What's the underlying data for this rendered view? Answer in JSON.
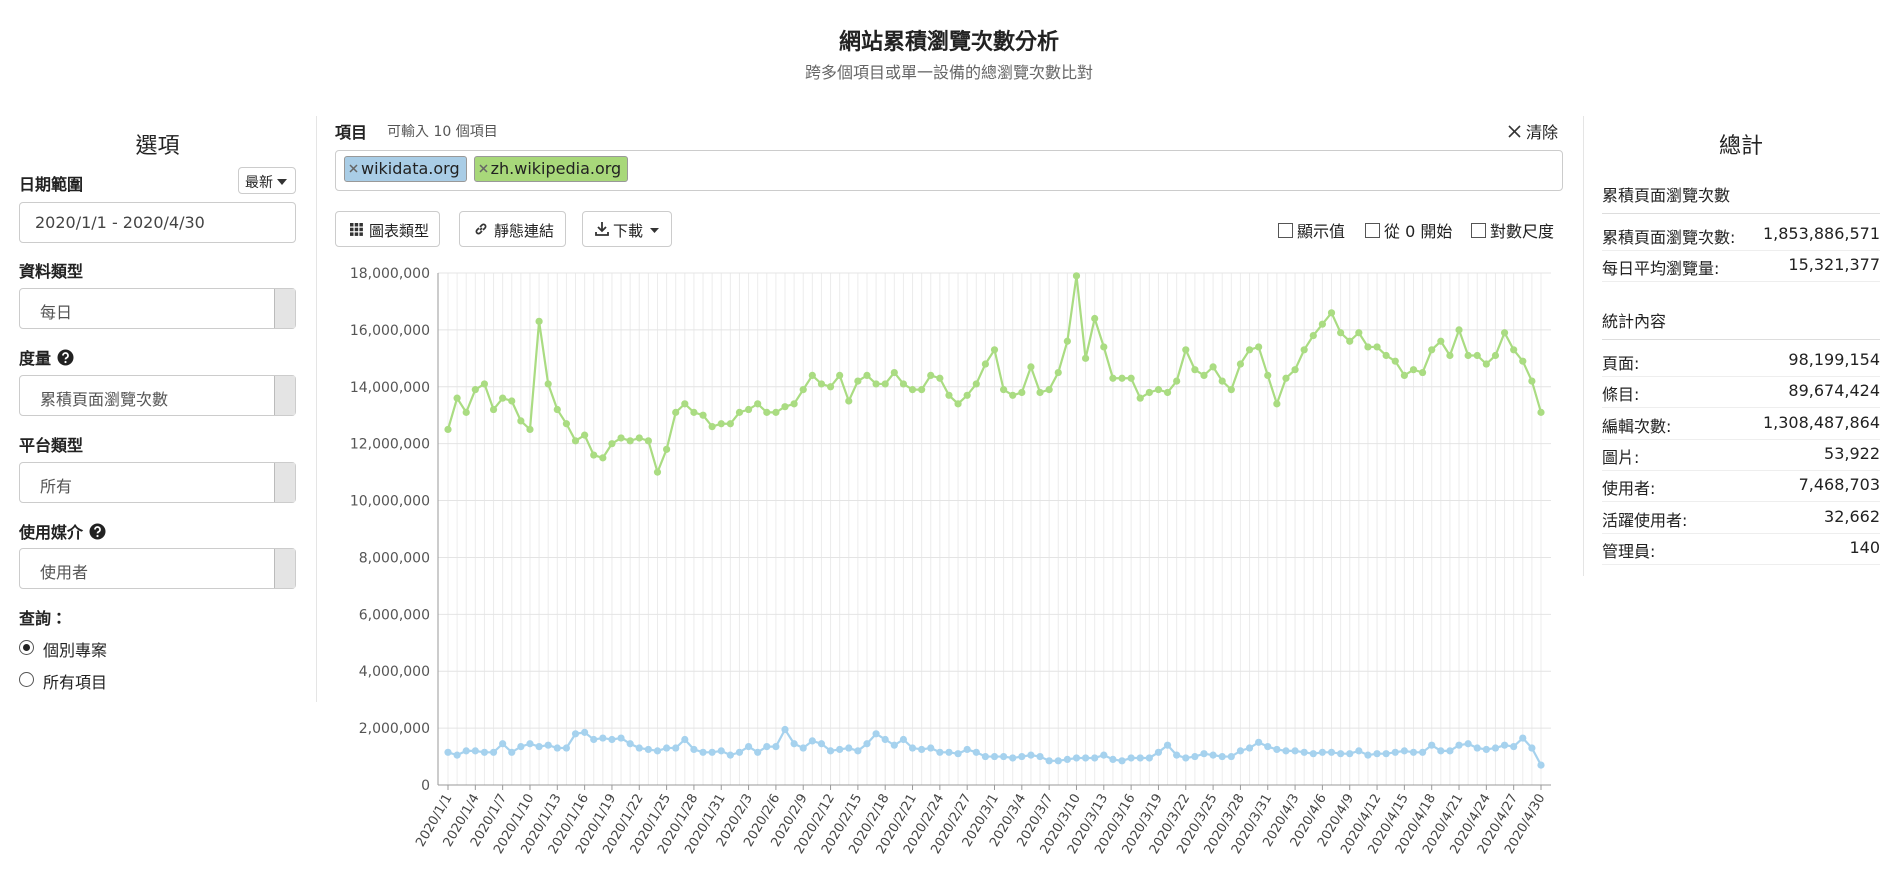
{
  "header": {
    "title": "網站累積瀏覽次數分析",
    "subtitle": "跨多個項目或單一設備的總瀏覽次數比對"
  },
  "options": {
    "title": "選項",
    "date_range_label": "日期範圍",
    "latest_button": "最新",
    "date_range": "2020/1/1 - 2020/4/30",
    "data_type_label": "資料類型",
    "data_type": "每日",
    "metric_label": "度量",
    "metric": "累積頁面瀏覽次數",
    "platform_label": "平台類型",
    "platform": "所有",
    "agent_label": "使用媒介",
    "agent": "使用者",
    "query_label": "查詢：",
    "query_options": [
      "個別專案",
      "所有項目"
    ]
  },
  "toolbar": {
    "items_label": "項目",
    "items_hint": "可輸入 10 個項目",
    "clear": "清除",
    "buttons": [
      "圖表類型",
      "靜態連結",
      "下載"
    ],
    "checkboxes": [
      "顯示值",
      "從 0 開始",
      "對數尺度"
    ]
  },
  "chart_data": {
    "type": "line",
    "categories": [
      "2020/1/1",
      null,
      null,
      "2020/1/4",
      null,
      null,
      "2020/1/7",
      null,
      null,
      "2020/1/10",
      null,
      null,
      "2020/1/13",
      null,
      null,
      "2020/1/16",
      null,
      null,
      "2020/1/19",
      null,
      null,
      "2020/1/22",
      null,
      null,
      "2020/1/25",
      null,
      null,
      "2020/1/28",
      null,
      null,
      "2020/1/31",
      null,
      null,
      "2020/2/3",
      null,
      null,
      "2020/2/6",
      null,
      null,
      "2020/2/9",
      null,
      null,
      "2020/2/12",
      null,
      null,
      "2020/2/15",
      null,
      null,
      "2020/2/18",
      null,
      null,
      "2020/2/21",
      null,
      null,
      "2020/2/24",
      null,
      null,
      "2020/2/27",
      null,
      null,
      "2020/3/1",
      null,
      null,
      "2020/3/4",
      null,
      null,
      "2020/3/7",
      null,
      null,
      "2020/3/10",
      null,
      null,
      "2020/3/13",
      null,
      null,
      "2020/3/16",
      null,
      null,
      "2020/3/19",
      null,
      null,
      "2020/3/22",
      null,
      null,
      "2020/3/25",
      null,
      null,
      "2020/3/28",
      null,
      null,
      "2020/3/31",
      null,
      null,
      "2020/4/3",
      null,
      null,
      "2020/4/6",
      null,
      null,
      "2020/4/9",
      null,
      null,
      "2020/4/12",
      null,
      null,
      "2020/4/15",
      null,
      null,
      "2020/4/18",
      null,
      null,
      "2020/4/21",
      null,
      null,
      "2020/4/24",
      null,
      null,
      "2020/4/27",
      null,
      null,
      "2020/4/30"
    ],
    "series": [
      {
        "name": "wikidata.org",
        "color": "#a6d2ee",
        "tag_color": "#a9cde6",
        "values": [
          1150000,
          1050000,
          1200000,
          1200000,
          1150000,
          1150000,
          1450000,
          1150000,
          1350000,
          1450000,
          1350000,
          1400000,
          1300000,
          1300000,
          1800000,
          1850000,
          1600000,
          1650000,
          1600000,
          1650000,
          1450000,
          1300000,
          1250000,
          1200000,
          1300000,
          1300000,
          1600000,
          1250000,
          1150000,
          1150000,
          1200000,
          1050000,
          1150000,
          1350000,
          1150000,
          1350000,
          1350000,
          1950000,
          1450000,
          1300000,
          1550000,
          1450000,
          1200000,
          1250000,
          1300000,
          1200000,
          1450000,
          1800000,
          1600000,
          1400000,
          1600000,
          1300000,
          1250000,
          1300000,
          1150000,
          1150000,
          1100000,
          1250000,
          1150000,
          1000000,
          1000000,
          1000000,
          950000,
          1000000,
          1050000,
          1000000,
          850000,
          850000,
          900000,
          950000,
          950000,
          950000,
          1050000,
          900000,
          850000,
          950000,
          950000,
          950000,
          1150000,
          1400000,
          1050000,
          950000,
          1000000,
          1100000,
          1050000,
          1000000,
          1000000,
          1200000,
          1300000,
          1500000,
          1350000,
          1250000,
          1200000,
          1200000,
          1150000,
          1100000,
          1150000,
          1150000,
          1100000,
          1100000,
          1200000,
          1050000,
          1100000,
          1100000,
          1150000,
          1200000,
          1150000,
          1150000,
          1400000,
          1200000,
          1200000,
          1400000,
          1450000,
          1300000,
          1250000,
          1300000,
          1400000,
          1350000,
          1650000,
          1300000,
          700000
        ]
      },
      {
        "name": "zh.wikipedia.org",
        "color": "#aadc82",
        "tag_color": "#a8d87a",
        "values": [
          12500000,
          13600000,
          13100000,
          13900000,
          14100000,
          13200000,
          13600000,
          13500000,
          12800000,
          12500000,
          16300000,
          14100000,
          13200000,
          12700000,
          12100000,
          12300000,
          11600000,
          11500000,
          12000000,
          12200000,
          12100000,
          12200000,
          12100000,
          11000000,
          11800000,
          13100000,
          13400000,
          13100000,
          13000000,
          12600000,
          12700000,
          12700000,
          13100000,
          13200000,
          13400000,
          13100000,
          13100000,
          13300000,
          13400000,
          13900000,
          14400000,
          14100000,
          14000000,
          14400000,
          13500000,
          14200000,
          14400000,
          14100000,
          14100000,
          14500000,
          14100000,
          13900000,
          13900000,
          14400000,
          14300000,
          13700000,
          13400000,
          13700000,
          14100000,
          14800000,
          15300000,
          13900000,
          13700000,
          13800000,
          14700000,
          13800000,
          13900000,
          14500000,
          15600000,
          17900000,
          15000000,
          16400000,
          15400000,
          14300000,
          14300000,
          14300000,
          13600000,
          13800000,
          13900000,
          13800000,
          14200000,
          15300000,
          14600000,
          14400000,
          14700000,
          14200000,
          13900000,
          14800000,
          15300000,
          15400000,
          14400000,
          13400000,
          14300000,
          14600000,
          15300000,
          15800000,
          16200000,
          16600000,
          15900000,
          15600000,
          15900000,
          15400000,
          15400000,
          15100000,
          14900000,
          14400000,
          14600000,
          14500000,
          15300000,
          15600000,
          15100000,
          16000000,
          15100000,
          15100000,
          14800000,
          15100000,
          15900000,
          15300000,
          14900000,
          14200000,
          13100000
        ]
      }
    ],
    "ylim": [
      0,
      18000000
    ],
    "yticks": [
      0,
      {
        "value": 2000000,
        "label": "2,000,000"
      },
      {
        "value": 4000000,
        "label": "4,000,000"
      },
      {
        "value": 6000000,
        "label": "6,000,000"
      },
      {
        "value": 8000000,
        "label": "8,000,000"
      },
      {
        "value": 10000000,
        "label": "10,000,000"
      },
      {
        "value": 12000000,
        "label": "12,000,000"
      },
      {
        "value": 14000000,
        "label": "14,000,000"
      },
      {
        "value": 16000000,
        "label": "16,000,000"
      },
      {
        "value": 18000000,
        "label": "18,000,000"
      }
    ],
    "grid": true
  },
  "totals": {
    "title": "總計",
    "section1": "累積頁面瀏覽次數",
    "rows1": [
      {
        "label": "累積頁面瀏覽次數:",
        "value": "1,853,886,571"
      },
      {
        "label": "每日平均瀏覽量:",
        "value": "15,321,377"
      }
    ],
    "section2": "統計內容",
    "rows2": [
      {
        "label": "頁面:",
        "value": "98,199,154"
      },
      {
        "label": "條目:",
        "value": "89,674,424"
      },
      {
        "label": "編輯次數:",
        "value": "1,308,487,864"
      },
      {
        "label": "圖片:",
        "value": "53,922"
      },
      {
        "label": "使用者:",
        "value": "7,468,703"
      },
      {
        "label": "活躍使用者:",
        "value": "32,662"
      },
      {
        "label": "管理員:",
        "value": "140"
      }
    ]
  }
}
